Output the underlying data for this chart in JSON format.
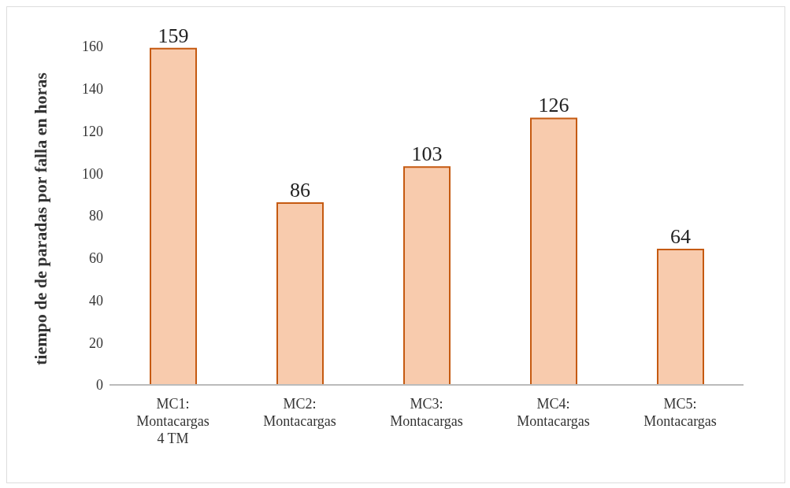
{
  "chart_data": {
    "type": "bar",
    "ylabel": "tiempo de de paradas por falla en horas",
    "categories": [
      "MC1: Montacargas 4 TM",
      "MC2: Montacargas",
      "MC3: Montacargas",
      "MC4: Montacargas",
      "MC5: Montacargas"
    ],
    "values": [
      159,
      86,
      103,
      126,
      64
    ],
    "color": "#f8cbad",
    "ylim": [
      0,
      160
    ],
    "yticks": [
      0,
      20,
      40,
      60,
      80,
      100,
      120,
      140,
      160
    ],
    "grid": false,
    "data_labels": true
  }
}
